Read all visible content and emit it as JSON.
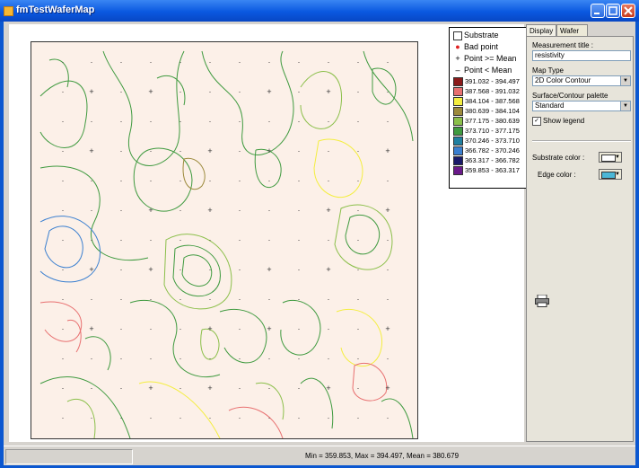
{
  "window": {
    "title": "fmTestWaferMap",
    "min_icon": "minimize-icon",
    "max_icon": "maximize-icon",
    "close_icon": "close-icon"
  },
  "legend": {
    "items": [
      {
        "label": "Substrate",
        "marker": "square-outline"
      },
      {
        "label": "Bad point",
        "marker": "red-dot",
        "color": "#e02020"
      },
      {
        "label": "Point >= Mean",
        "marker": "plus"
      },
      {
        "label": "Point < Mean",
        "marker": "minus"
      }
    ],
    "ranges": [
      {
        "label": "391.032 - 394.497",
        "color": "#8b1a1a"
      },
      {
        "label": "387.568 - 391.032",
        "color": "#e87070"
      },
      {
        "label": "384.104 - 387.568",
        "color": "#f4ee40"
      },
      {
        "label": "380.639 - 384.104",
        "color": "#9c8a3c"
      },
      {
        "label": "377.175 - 380.639",
        "color": "#8bbf4a"
      },
      {
        "label": "373.710 - 377.175",
        "color": "#3f9a3f"
      },
      {
        "label": "370.246 - 373.710",
        "color": "#1f7fa0"
      },
      {
        "label": "366.782 - 370.246",
        "color": "#3a7fd0"
      },
      {
        "label": "363.317 - 366.782",
        "color": "#1a1a6a"
      },
      {
        "label": "359.853 - 363.317",
        "color": "#6a1a8a"
      }
    ]
  },
  "panel": {
    "tabs": [
      "Display",
      "Wafer params"
    ],
    "measurement_title_label": "Measurement title :",
    "measurement_title_value": "resistivity",
    "map_type_label": "Map Type",
    "map_type_value": "2D Color Contour",
    "palette_label": "Surface/Contour palette",
    "palette_value": "Standard",
    "show_legend_label": "Show legend",
    "show_legend_checked": true,
    "substrate_color_label": "Substrate color :",
    "edge_color_label": "Edge color :",
    "substrate_color": "#ffffff",
    "edge_color": "#4bb7d6",
    "print_icon": "printer-icon"
  },
  "status": {
    "summary": "Min = 359.853, Max = 394.497, Mean = 380.679"
  }
}
